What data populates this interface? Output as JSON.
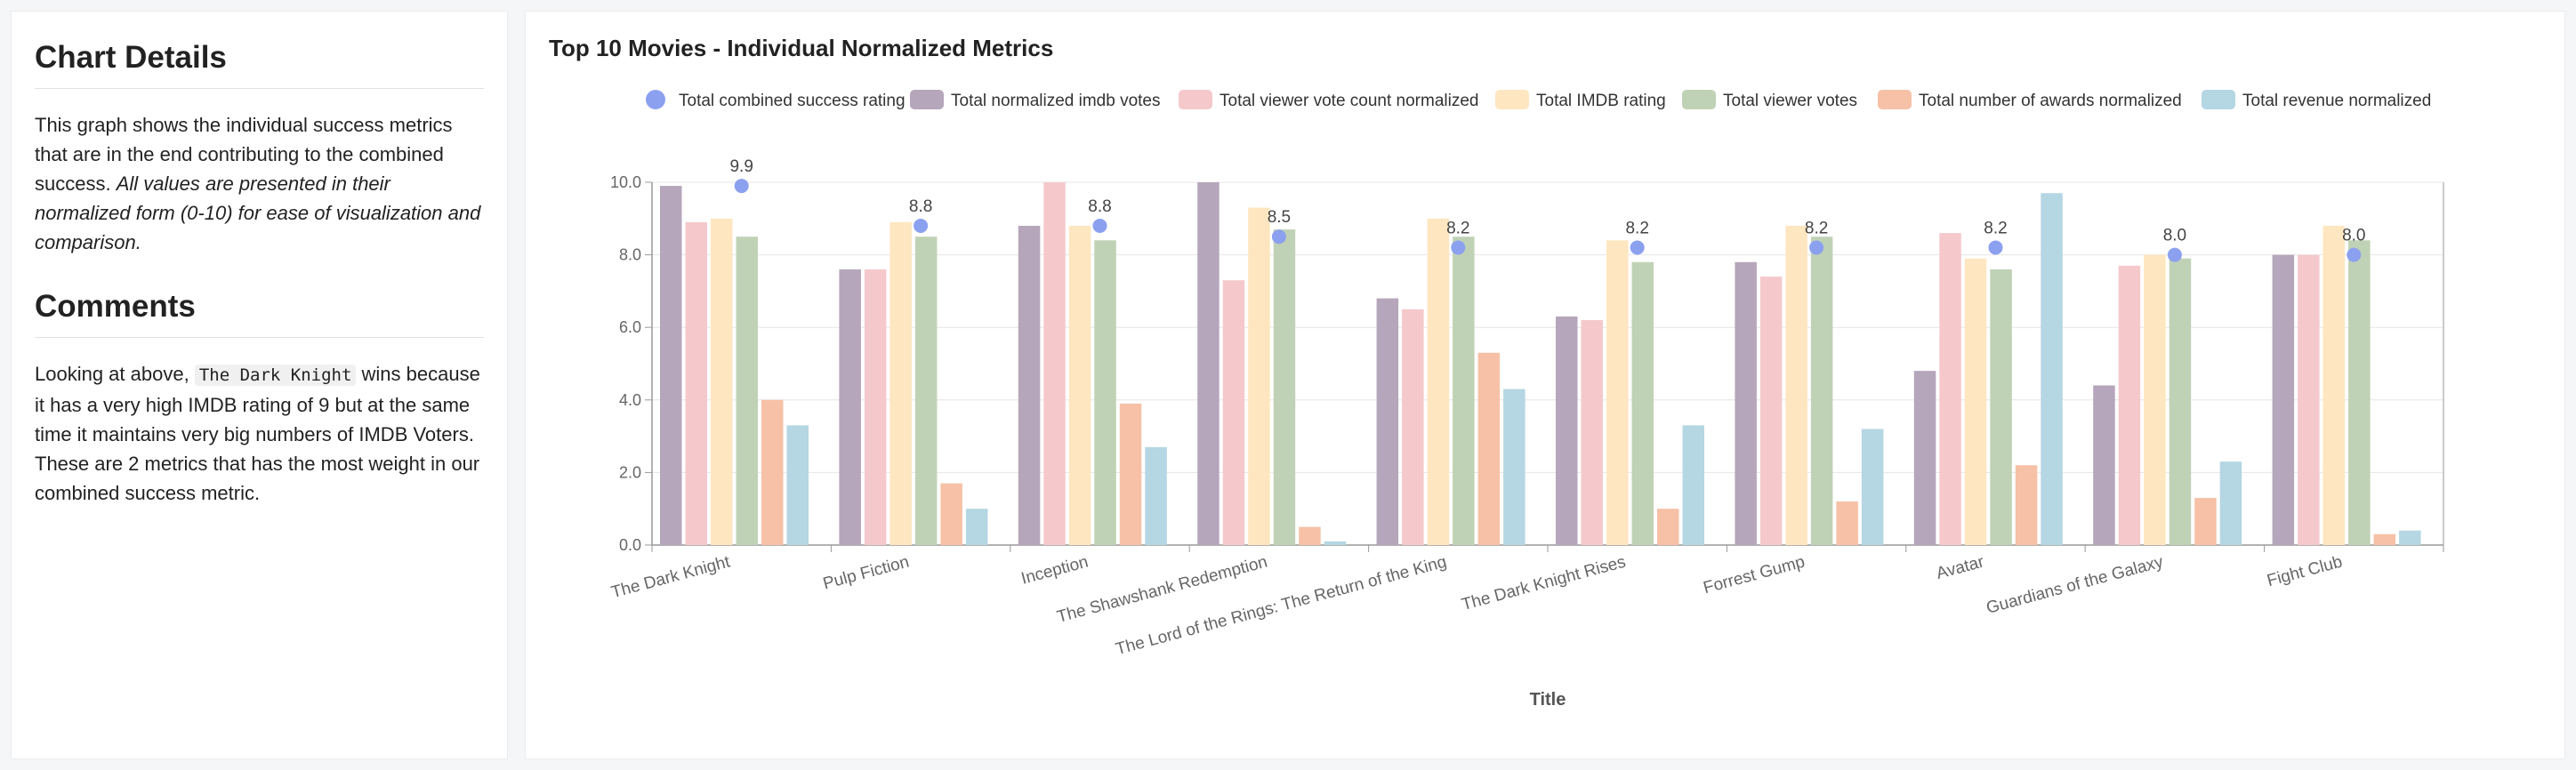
{
  "sidebar": {
    "details_title": "Chart Details",
    "details_text_1": "This graph shows the individual success metrics that are in the end contributing to the combined success. ",
    "details_text_2": "All values are presented in their normalized form (0-10) for ease of visualization and comparison.",
    "comments_title": "Comments",
    "comments_text_1": "Looking at above, ",
    "comments_code": "The Dark Knight",
    "comments_text_2": " wins because it has a very high IMDB rating of 9 but at the same time it maintains very big numbers of IMDB Voters. These are 2 metrics that has the most weight in our combined success metric."
  },
  "chart_data": {
    "type": "bar",
    "title": "Top 10 Movies - Individual Normalized Metrics",
    "xlabel": "Title",
    "ylabel": "",
    "ylim": [
      0,
      10
    ],
    "yticks": [
      "0.0",
      "2.0",
      "4.0",
      "6.0",
      "8.0",
      "10.0"
    ],
    "legend_position": "top",
    "categories": [
      "The Dark Knight",
      "Pulp Fiction",
      "Inception",
      "The Shawshank Redemption",
      "The Lord of the Rings: The Return of the King",
      "The Dark Knight Rises",
      "Forrest Gump",
      "Avatar",
      "Guardians of the Galaxy",
      "Fight Club"
    ],
    "series": [
      {
        "name": "Total normalized imdb votes",
        "color": "#b5a6bb",
        "values": [
          9.9,
          7.6,
          8.8,
          10.0,
          6.8,
          6.3,
          7.8,
          4.8,
          4.4,
          8.0
        ]
      },
      {
        "name": "Total viewer vote count normalized",
        "color": "#f5c9cc",
        "values": [
          8.9,
          7.6,
          10.0,
          7.3,
          6.5,
          6.2,
          7.4,
          8.6,
          7.7,
          8.0
        ]
      },
      {
        "name": "Total IMDB rating",
        "color": "#fde6c0",
        "values": [
          9.0,
          8.9,
          8.8,
          9.3,
          9.0,
          8.4,
          8.8,
          7.9,
          8.0,
          8.8
        ]
      },
      {
        "name": "Total viewer votes",
        "color": "#c0d2b5",
        "values": [
          8.5,
          8.5,
          8.4,
          8.7,
          8.5,
          7.8,
          8.5,
          7.6,
          7.9,
          8.4
        ]
      },
      {
        "name": "Total number of awards normalized",
        "color": "#f6c1a6",
        "values": [
          4.0,
          1.7,
          3.9,
          0.5,
          5.3,
          1.0,
          1.2,
          2.2,
          1.3,
          0.3
        ]
      },
      {
        "name": "Total revenue normalized",
        "color": "#b5d6e3",
        "values": [
          3.3,
          1.0,
          2.7,
          0.1,
          4.3,
          3.3,
          3.2,
          9.7,
          2.3,
          0.4
        ]
      }
    ],
    "combined": {
      "name": "Total combined success rating",
      "color": "#8ca0f0",
      "values": [
        9.9,
        8.8,
        8.8,
        8.5,
        8.2,
        8.2,
        8.2,
        8.2,
        8.0,
        8.0
      ],
      "labels": [
        "9.9",
        "8.8",
        "8.8",
        "8.5",
        "8.2",
        "8.2",
        "8.2",
        "8.2",
        "8.0",
        "8.0"
      ]
    }
  }
}
